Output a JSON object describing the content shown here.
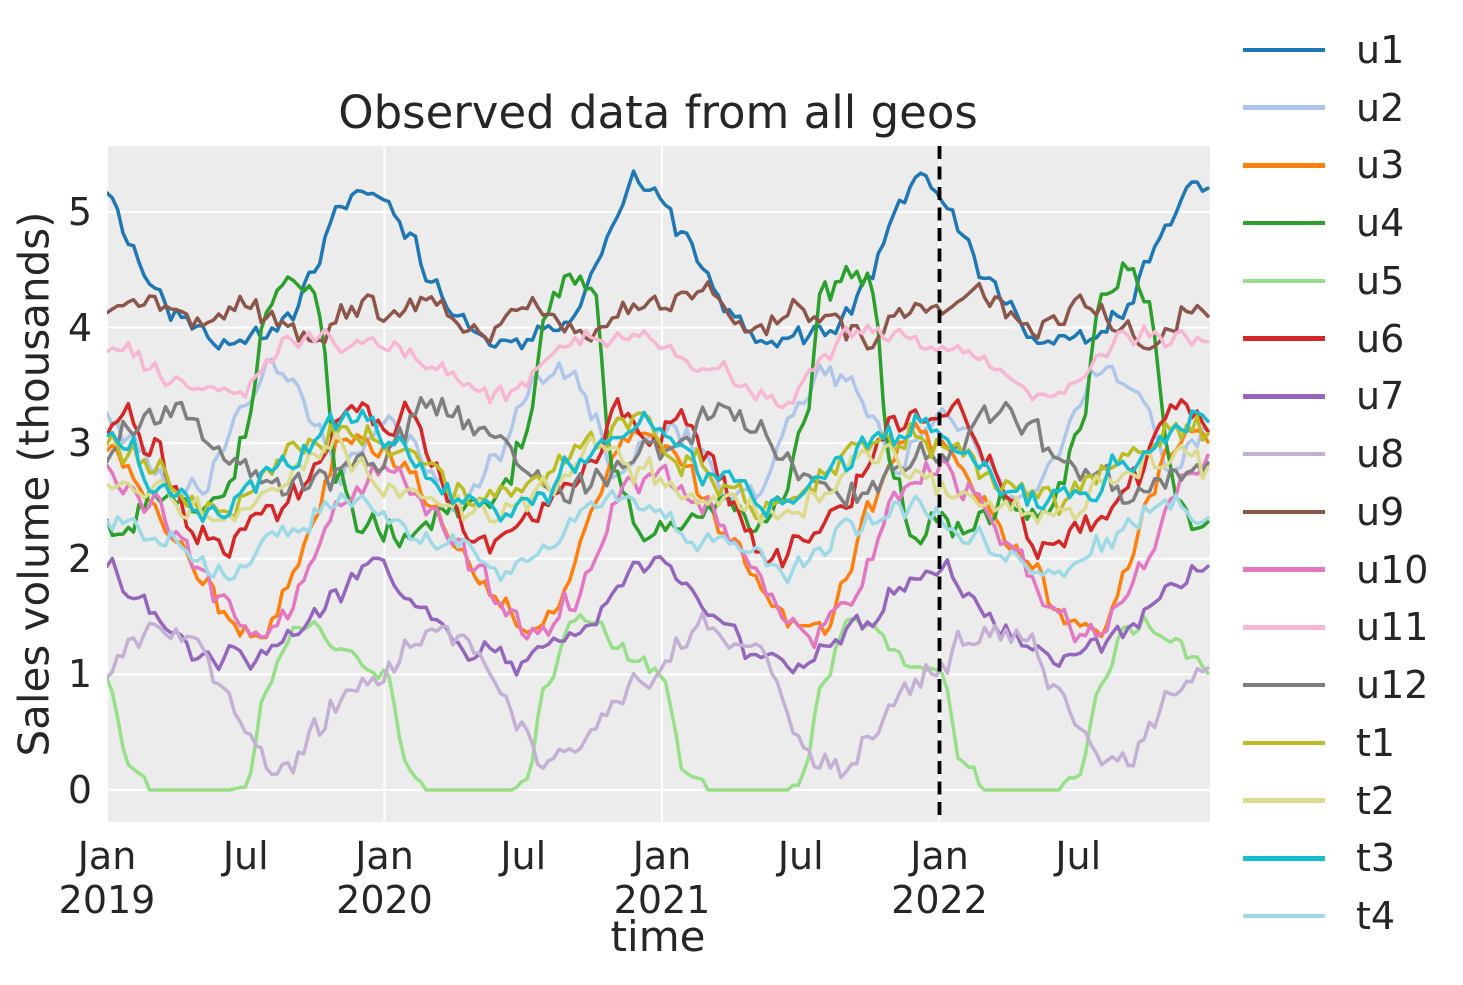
{
  "chart_data": {
    "type": "line",
    "title": "Observed data from all geos",
    "xlabel": "time",
    "ylabel": "Sales volume (thousands)",
    "x_axis": {
      "start": "2019-01",
      "end": "2022-12",
      "sampling": "weekly",
      "points_per_series": 208,
      "major_ticks": [
        {
          "month": "Jan",
          "year": "2019",
          "position_years": 0
        },
        {
          "month": "Jan",
          "year": "2020",
          "position_years": 1
        },
        {
          "month": "Jan",
          "year": "2021",
          "position_years": 2
        },
        {
          "month": "Jan",
          "year": "2022",
          "position_years": 3
        }
      ],
      "minor_ticks": [
        {
          "label": "Jul",
          "position_years": 0.5
        },
        {
          "label": "Jul",
          "position_years": 1.5
        },
        {
          "label": "Jul",
          "position_years": 2.5
        },
        {
          "label": "Jul",
          "position_years": 3.5
        }
      ]
    },
    "y_axis": {
      "ticks": [
        0,
        1,
        2,
        3,
        4,
        5
      ],
      "lim": [
        -0.28,
        5.58
      ]
    },
    "event_marker": {
      "date": "2022-01",
      "position_years": 3.0,
      "style": "dashed",
      "color": "#000000"
    },
    "style": {
      "plot_background": "#ececec",
      "grid_color": "#ffffff",
      "text_color": "#262626",
      "line_width": 3.5
    },
    "grid": true,
    "legend_position": "right",
    "series": [
      {
        "name": "u1",
        "color": "#1f77b4",
        "monthly_values": [
          5.15,
          4.8,
          4.45,
          4.15,
          3.95,
          3.85,
          3.9,
          3.95,
          4.15,
          4.5,
          4.95,
          5.25
        ],
        "noise": 0.09,
        "seed": 1
      },
      {
        "name": "u2",
        "color": "#aec7e8",
        "monthly_values": [
          3.2,
          3.05,
          2.8,
          2.55,
          2.6,
          2.95,
          3.35,
          3.65,
          3.55,
          3.25,
          2.75,
          3.0
        ],
        "noise": 0.1,
        "seed": 2
      },
      {
        "name": "u3",
        "color": "#ff7f0e",
        "monthly_values": [
          2.95,
          2.75,
          2.45,
          2.15,
          1.9,
          1.6,
          1.4,
          1.45,
          1.85,
          2.4,
          2.95,
          3.1
        ],
        "noise": 0.09,
        "seed": 3
      },
      {
        "name": "u4",
        "color": "#2ca02c",
        "monthly_values": [
          2.25,
          2.3,
          2.45,
          2.5,
          2.35,
          2.5,
          3.0,
          4.2,
          4.55,
          4.35,
          2.7,
          2.2
        ],
        "noise": 0.13,
        "seed": 4
      },
      {
        "name": "u5",
        "color": "#98df8a",
        "monthly_values": [
          1.0,
          0.2,
          0.0,
          0.0,
          0.0,
          0.0,
          0.08,
          0.9,
          1.4,
          1.45,
          1.25,
          1.1
        ],
        "noise": 0.07,
        "seed": 5,
        "floor": 0
      },
      {
        "name": "u6",
        "color": "#d62728",
        "monthly_values": [
          3.15,
          3.25,
          2.9,
          2.55,
          2.15,
          2.05,
          2.25,
          2.4,
          2.6,
          2.85,
          3.2,
          3.2
        ],
        "noise": 0.13,
        "seed": 6
      },
      {
        "name": "u7",
        "color": "#9467bd",
        "monthly_values": [
          1.95,
          1.75,
          1.5,
          1.35,
          1.2,
          1.15,
          1.1,
          1.2,
          1.35,
          1.5,
          1.7,
          1.9
        ],
        "noise": 0.09,
        "seed": 7
      },
      {
        "name": "u8",
        "color": "#c5b0d5",
        "monthly_values": [
          1.05,
          1.3,
          1.4,
          1.3,
          1.2,
          0.85,
          0.5,
          0.25,
          0.2,
          0.5,
          0.75,
          0.95
        ],
        "noise": 0.11,
        "seed": 8,
        "floor": 0.05
      },
      {
        "name": "u9",
        "color": "#8c564b",
        "monthly_values": [
          4.1,
          4.25,
          4.3,
          4.15,
          4.0,
          4.05,
          4.15,
          4.1,
          4.0,
          3.8,
          4.1,
          4.2
        ],
        "noise": 0.1,
        "seed": 9
      },
      {
        "name": "u10",
        "color": "#e377c2",
        "monthly_values": [
          2.8,
          2.6,
          2.45,
          2.15,
          1.9,
          1.6,
          1.4,
          1.35,
          1.6,
          2.0,
          2.5,
          2.7
        ],
        "noise": 0.11,
        "seed": 10
      },
      {
        "name": "u11",
        "color": "#f7b6d2",
        "monthly_values": [
          3.85,
          3.75,
          3.65,
          3.55,
          3.45,
          3.4,
          3.5,
          3.75,
          3.9,
          3.95,
          3.9,
          3.9
        ],
        "noise": 0.08,
        "seed": 11
      },
      {
        "name": "u12",
        "color": "#7f7f7f",
        "monthly_values": [
          2.9,
          3.1,
          3.3,
          3.25,
          3.1,
          2.95,
          2.8,
          2.7,
          2.6,
          2.65,
          2.75,
          2.85
        ],
        "noise": 0.13,
        "seed": 12
      },
      {
        "name": "t1",
        "color": "#bcbd22",
        "monthly_values": [
          3.0,
          2.9,
          2.75,
          2.6,
          2.5,
          2.45,
          2.55,
          2.7,
          2.9,
          3.0,
          3.1,
          3.15
        ],
        "noise": 0.12,
        "seed": 13
      },
      {
        "name": "t2",
        "color": "#dbdb8d",
        "monthly_values": [
          2.65,
          2.55,
          2.5,
          2.45,
          2.4,
          2.35,
          2.45,
          2.6,
          2.75,
          2.9,
          2.95,
          2.8
        ],
        "noise": 0.12,
        "seed": 14
      },
      {
        "name": "t3",
        "color": "#17becf",
        "monthly_values": [
          3.05,
          2.9,
          2.7,
          2.6,
          2.5,
          2.45,
          2.5,
          2.65,
          2.85,
          3.0,
          3.1,
          3.2
        ],
        "noise": 0.12,
        "seed": 15
      },
      {
        "name": "t4",
        "color": "#9edae5",
        "monthly_values": [
          2.35,
          2.25,
          2.15,
          2.1,
          2.0,
          1.9,
          1.95,
          2.1,
          2.25,
          2.4,
          2.5,
          2.45
        ],
        "noise": 0.1,
        "seed": 16
      }
    ]
  }
}
